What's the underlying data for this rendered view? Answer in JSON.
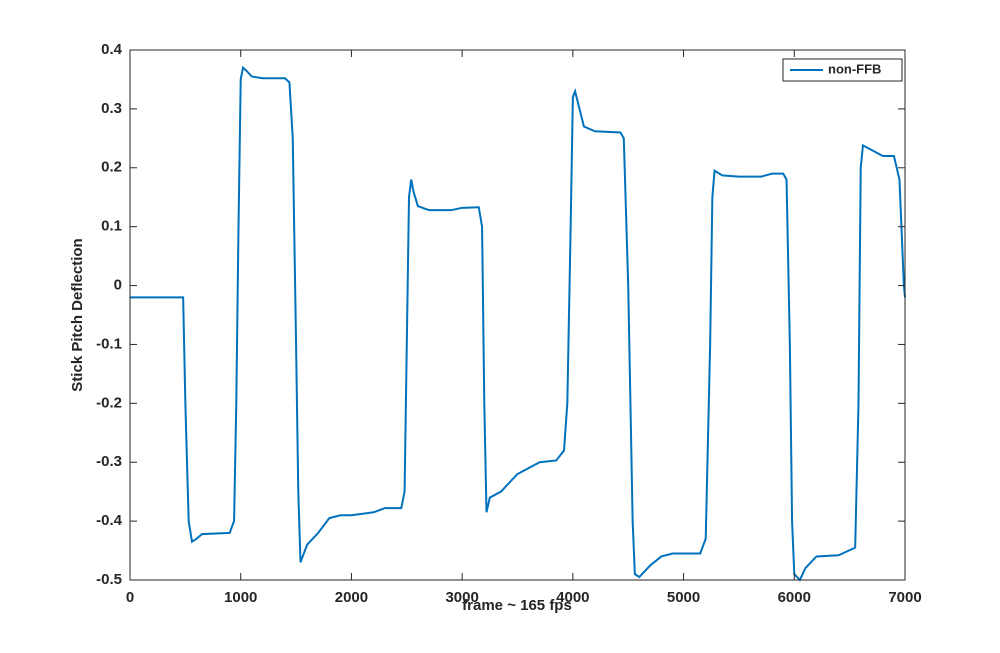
{
  "chart_data": {
    "type": "line",
    "xlabel": "frame ~ 165 fps",
    "ylabel": "Stick Pitch Deflection",
    "xlim": [
      0,
      7000
    ],
    "xticks": [
      0,
      1000,
      2000,
      3000,
      4000,
      5000,
      6000,
      7000
    ],
    "ylim": [
      -0.5,
      0.4
    ],
    "yticks": [
      -0.5,
      -0.4,
      -0.3,
      -0.2,
      -0.1,
      0,
      0.1,
      0.2,
      0.3,
      0.4
    ],
    "legend": "northeast",
    "series": [
      {
        "name": "non-FFB",
        "color": "#0072bd",
        "x": [
          0,
          480,
          500,
          530,
          560,
          600,
          650,
          900,
          940,
          960,
          980,
          1000,
          1020,
          1050,
          1100,
          1200,
          1400,
          1440,
          1470,
          1500,
          1520,
          1540,
          1560,
          1600,
          1700,
          1800,
          1900,
          2000,
          2200,
          2300,
          2450,
          2480,
          2500,
          2520,
          2540,
          2560,
          2600,
          2700,
          2900,
          3000,
          3150,
          3180,
          3200,
          3220,
          3250,
          3350,
          3500,
          3700,
          3850,
          3920,
          3950,
          3980,
          4000,
          4020,
          4060,
          4100,
          4200,
          4430,
          4460,
          4500,
          4540,
          4560,
          4600,
          4700,
          4800,
          4900,
          5150,
          5200,
          5240,
          5260,
          5280,
          5350,
          5500,
          5700,
          5800,
          5900,
          5930,
          5960,
          5980,
          6000,
          6050,
          6100,
          6200,
          6400,
          6550,
          6580,
          6600,
          6620,
          6700,
          6800,
          6900,
          6950,
          6990,
          7000
        ],
        "values": [
          -0.02,
          -0.02,
          -0.2,
          -0.4,
          -0.435,
          -0.43,
          -0.422,
          -0.42,
          -0.4,
          -0.2,
          0.1,
          0.35,
          0.37,
          0.365,
          0.355,
          0.352,
          0.352,
          0.345,
          0.25,
          -0.1,
          -0.35,
          -0.47,
          -0.46,
          -0.44,
          -0.42,
          -0.395,
          -0.39,
          -0.39,
          -0.385,
          -0.378,
          -0.378,
          -0.35,
          -0.1,
          0.15,
          0.18,
          0.16,
          0.135,
          0.128,
          0.128,
          0.132,
          0.133,
          0.1,
          -0.2,
          -0.385,
          -0.36,
          -0.35,
          -0.32,
          -0.3,
          -0.297,
          -0.28,
          -0.2,
          0.1,
          0.32,
          0.33,
          0.3,
          0.27,
          0.262,
          0.26,
          0.25,
          0.0,
          -0.4,
          -0.49,
          -0.495,
          -0.475,
          -0.46,
          -0.455,
          -0.455,
          -0.43,
          -0.1,
          0.15,
          0.195,
          0.187,
          0.185,
          0.185,
          0.19,
          0.19,
          0.18,
          -0.1,
          -0.4,
          -0.49,
          -0.5,
          -0.48,
          -0.46,
          -0.458,
          -0.445,
          -0.2,
          0.2,
          0.238,
          0.23,
          0.22,
          0.22,
          0.18,
          0.0,
          -0.02
        ]
      }
    ]
  }
}
